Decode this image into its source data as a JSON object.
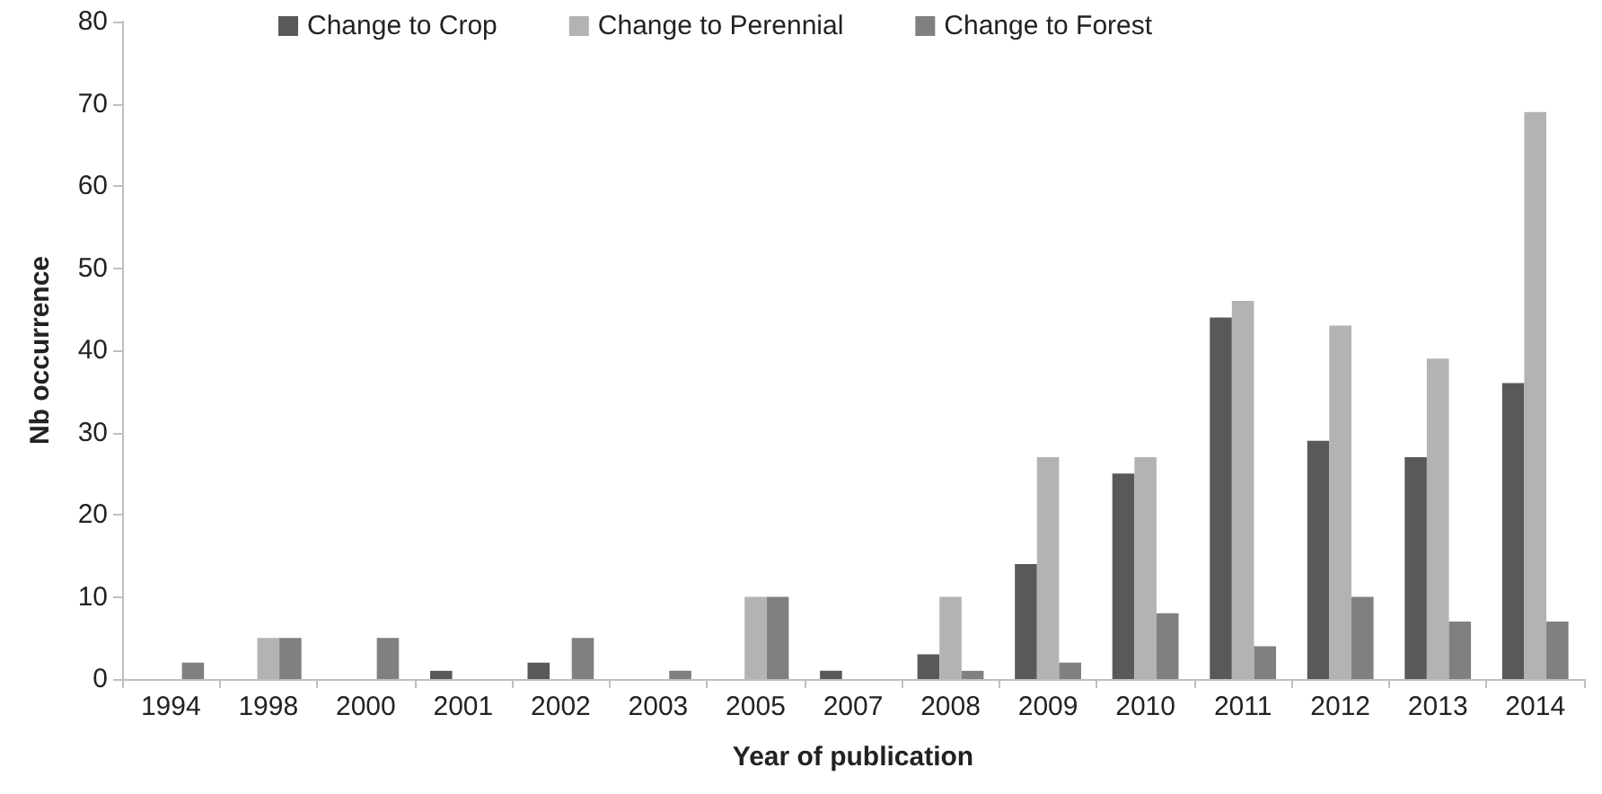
{
  "chart_data": {
    "type": "bar",
    "xlabel": "Year of publication",
    "ylabel": "Nb occurrence",
    "categories": [
      "1994",
      "1998",
      "2000",
      "2001",
      "2002",
      "2003",
      "2005",
      "2007",
      "2008",
      "2009",
      "2010",
      "2011",
      "2012",
      "2013",
      "2014"
    ],
    "series": [
      {
        "name": "Change to Crop",
        "color": "#595959",
        "values": [
          0,
          0,
          0,
          1,
          2,
          0,
          0,
          1,
          3,
          14,
          25,
          44,
          29,
          27,
          36
        ]
      },
      {
        "name": "Change to Perennial",
        "color": "#b3b3b3",
        "values": [
          0,
          5,
          0,
          0,
          0,
          0,
          10,
          0,
          10,
          27,
          27,
          46,
          43,
          39,
          69
        ]
      },
      {
        "name": "Change to Forest",
        "color": "#808080",
        "values": [
          2,
          5,
          5,
          0,
          5,
          1,
          10,
          0,
          1,
          2,
          8,
          4,
          10,
          7,
          7
        ]
      }
    ],
    "ylim": [
      0,
      80
    ],
    "yticks": [
      0,
      10,
      20,
      30,
      40,
      50,
      60,
      70,
      80
    ],
    "grid": false,
    "legend": "top"
  }
}
